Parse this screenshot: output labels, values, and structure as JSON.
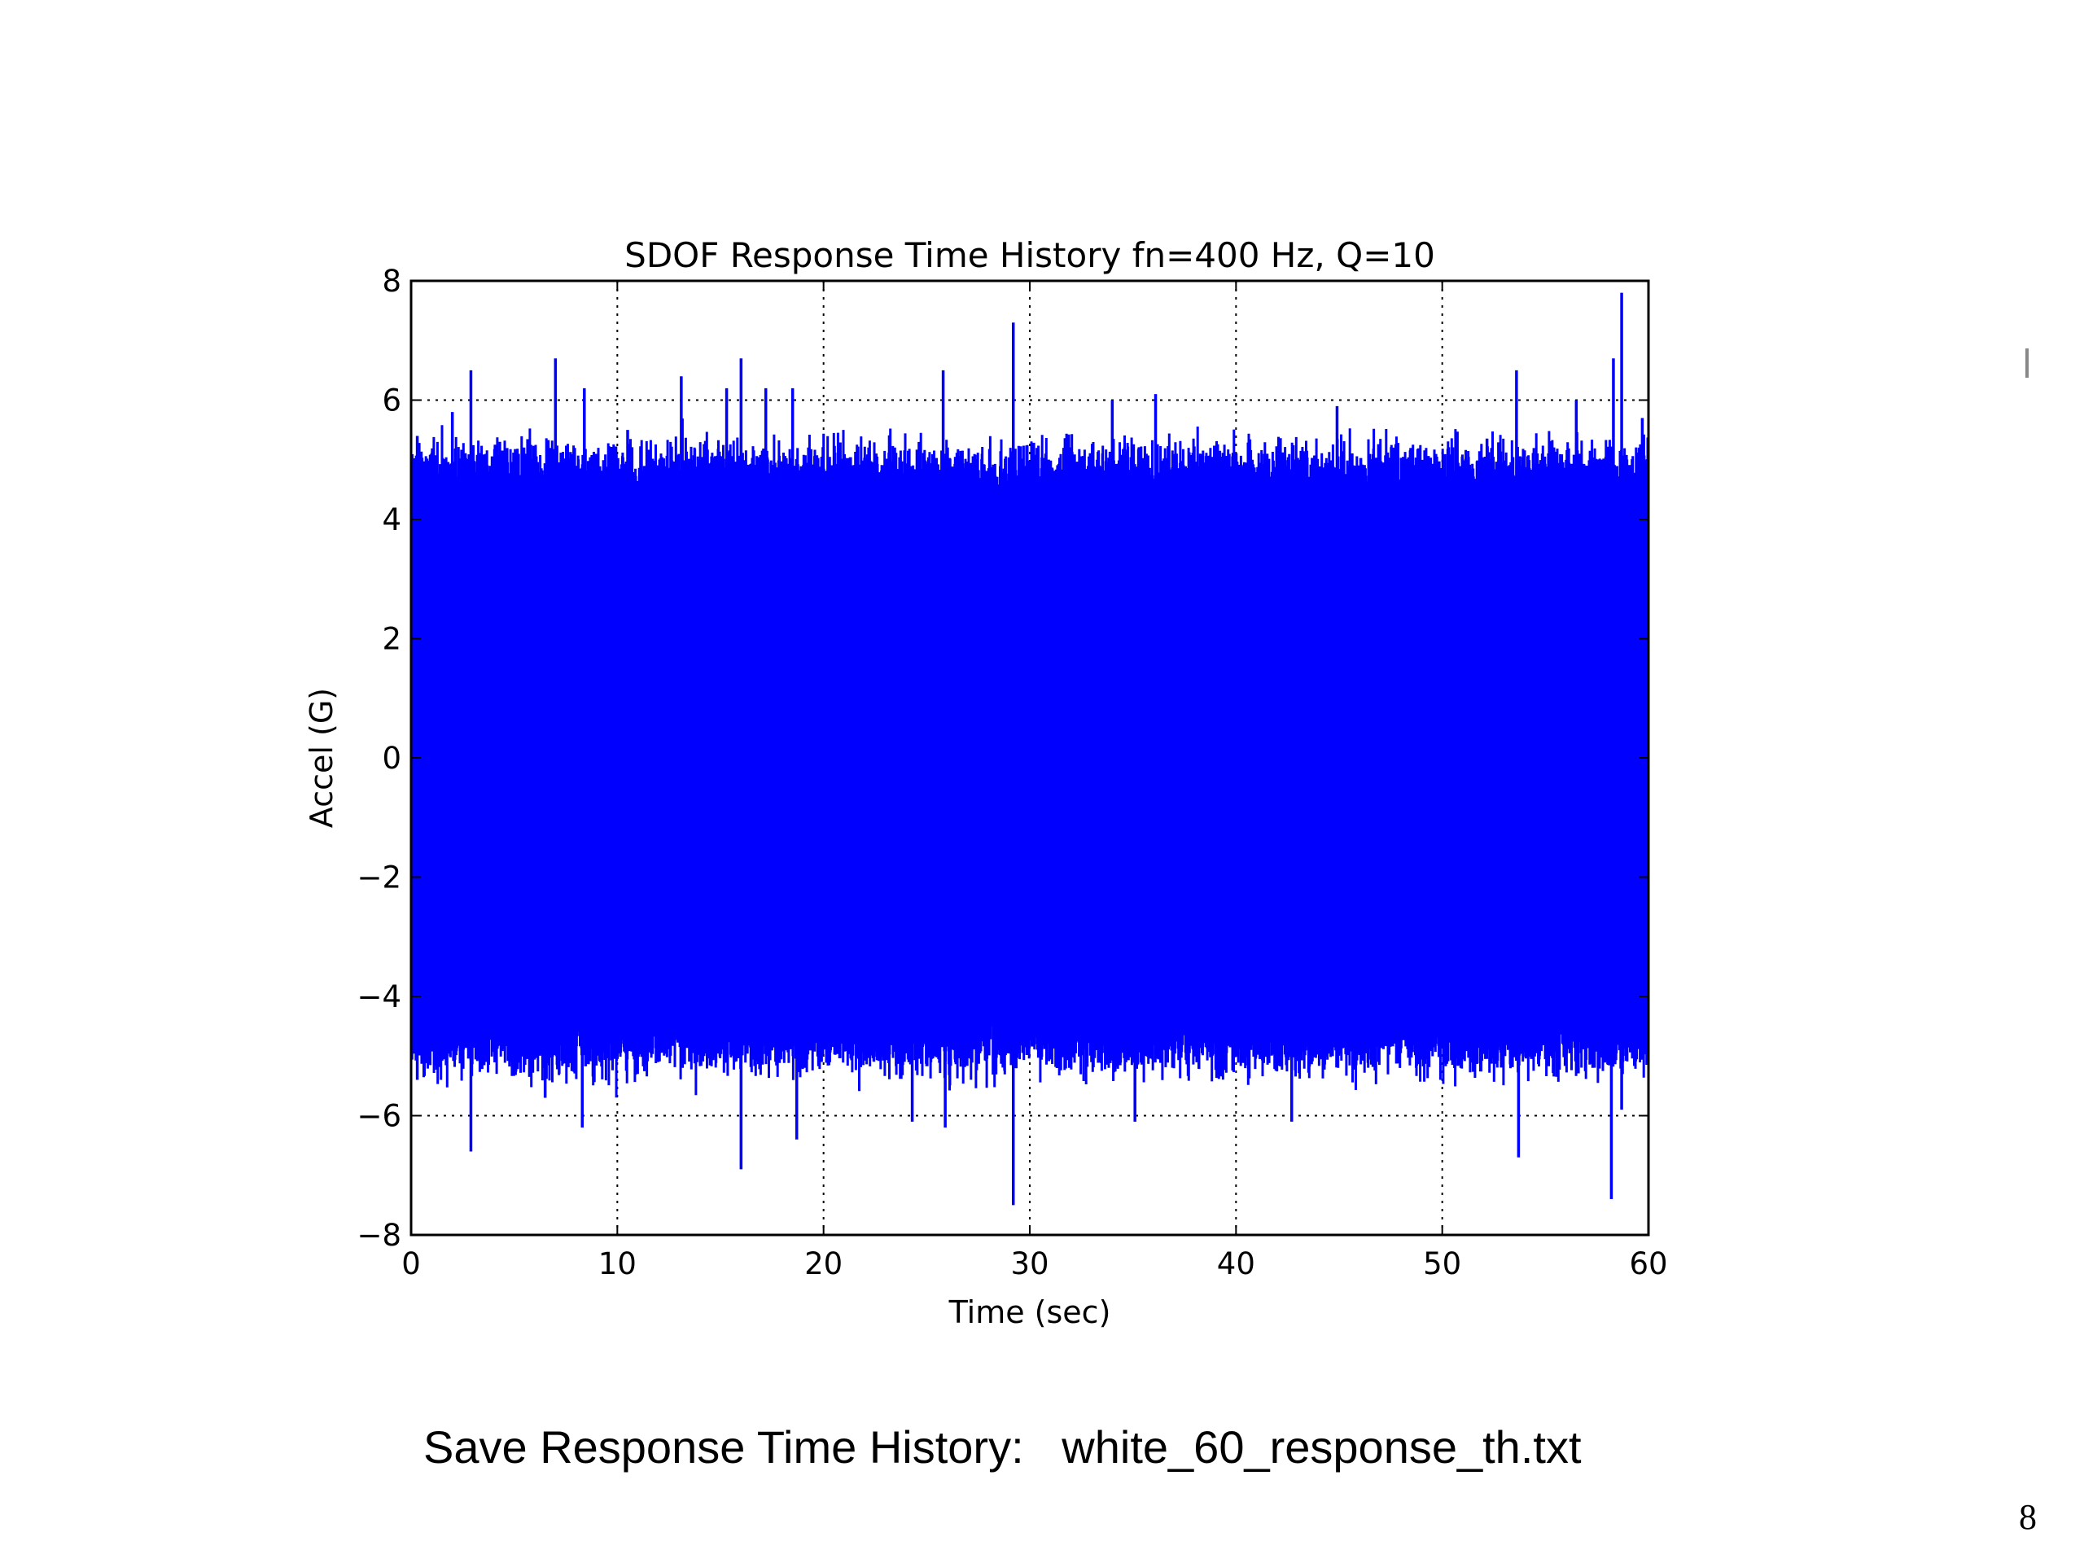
{
  "chart_data": {
    "type": "line",
    "title": "SDOF Response Time History  fn=400 Hz, Q=10",
    "xlabel": "Time (sec)",
    "ylabel": "Accel (G)",
    "xlim": [
      0,
      60
    ],
    "ylim": [
      -8,
      8
    ],
    "xticks": [
      0,
      10,
      20,
      30,
      40,
      50,
      60
    ],
    "yticks": [
      8,
      6,
      4,
      2,
      0,
      -2,
      -4,
      -6,
      -8
    ],
    "xtick_labels": [
      "0",
      "10",
      "20",
      "30",
      "40",
      "50",
      "60"
    ],
    "ytick_labels": [
      "8",
      "6",
      "4",
      "2",
      "0",
      "−2",
      "−4",
      "−6",
      "−8"
    ],
    "grid": true,
    "series": [
      {
        "color": "#0000ff",
        "description_of_signal": "",
        "rms_envelope": {
          "typical_max": 4.8,
          "typical_min": -4.8
        },
        "peaks": [
          {
            "x": 0.3,
            "y": 5.4
          },
          {
            "x": 1.0,
            "y": 4.9
          },
          {
            "x": 2.0,
            "y": 5.8
          },
          {
            "x": 2.9,
            "y": 6.5
          },
          {
            "x": 4.3,
            "y": 5.3
          },
          {
            "x": 7.0,
            "y": 6.7
          },
          {
            "x": 8.4,
            "y": 6.2
          },
          {
            "x": 10.5,
            "y": 5.5
          },
          {
            "x": 13.1,
            "y": 6.4
          },
          {
            "x": 15.3,
            "y": 6.2
          },
          {
            "x": 16.0,
            "y": 6.7
          },
          {
            "x": 17.2,
            "y": 6.2
          },
          {
            "x": 18.5,
            "y": 6.2
          },
          {
            "x": 25.8,
            "y": 6.5
          },
          {
            "x": 29.2,
            "y": 7.3
          },
          {
            "x": 34.0,
            "y": 6.0
          },
          {
            "x": 36.1,
            "y": 6.1
          },
          {
            "x": 44.9,
            "y": 5.9
          },
          {
            "x": 53.6,
            "y": 6.5
          },
          {
            "x": 56.5,
            "y": 6.0
          },
          {
            "x": 58.3,
            "y": 6.7
          },
          {
            "x": 58.7,
            "y": 7.8
          },
          {
            "x": 59.7,
            "y": 5.7
          },
          {
            "x": 0.3,
            "y": -5.4
          },
          {
            "x": 2.9,
            "y": -6.6
          },
          {
            "x": 6.5,
            "y": -5.7
          },
          {
            "x": 8.3,
            "y": -6.2
          },
          {
            "x": 16.0,
            "y": -6.9
          },
          {
            "x": 18.7,
            "y": -6.4
          },
          {
            "x": 24.3,
            "y": -6.1
          },
          {
            "x": 25.9,
            "y": -6.2
          },
          {
            "x": 29.2,
            "y": -7.5
          },
          {
            "x": 35.1,
            "y": -6.1
          },
          {
            "x": 42.7,
            "y": -6.1
          },
          {
            "x": 53.7,
            "y": -6.7
          },
          {
            "x": 58.2,
            "y": -7.4
          },
          {
            "x": 58.7,
            "y": -5.9
          }
        ]
      }
    ]
  },
  "caption": "Save Response Time History:   white_60_response_th.txt",
  "page_number": "8"
}
